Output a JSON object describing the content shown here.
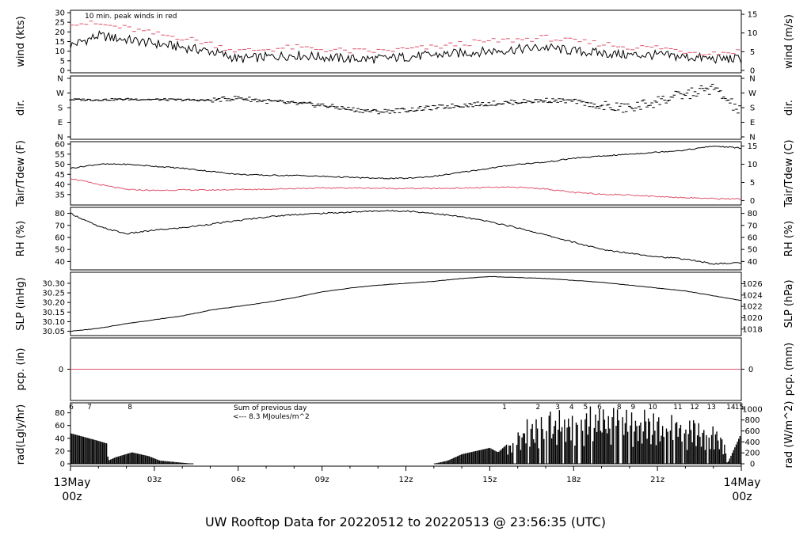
{
  "title": "UW Rooftop Data for 20220512  to  20220513 @ 23:56:35  (UTC)",
  "colors": {
    "title": "#2a8fd6",
    "peak": "#df536b",
    "rad_marks": "#b03fd0",
    "line": "#000000",
    "date": "#df536b"
  },
  "chart_data": [
    {
      "type": "line",
      "title": "",
      "note": "10 min. peak winds in red",
      "ylabel": "wind (kts)",
      "ylabel_right": "wind (m/s)",
      "yticks": [
        0,
        5,
        10,
        15,
        20,
        25,
        30
      ],
      "yticks_right": [
        0,
        5,
        10,
        15
      ],
      "ylim": [
        0,
        30
      ],
      "x": [
        0,
        1,
        2,
        3,
        4,
        5,
        6,
        7,
        8,
        9,
        10,
        11,
        12,
        13,
        14,
        15,
        16,
        17,
        18,
        19,
        20,
        21,
        22,
        23,
        24
      ],
      "series": [
        {
          "label": "wind",
          "values": [
            13,
            18,
            16,
            14,
            12,
            10,
            6,
            7,
            8,
            7,
            6,
            6,
            7,
            8,
            9,
            10,
            11,
            12,
            10,
            9,
            8,
            8,
            7,
            6,
            6
          ]
        },
        {
          "label": "peak",
          "values": [
            25,
            24,
            22,
            19,
            17,
            14,
            10,
            11,
            12,
            11,
            10,
            10,
            11,
            12,
            14,
            15,
            16,
            17,
            15,
            14,
            12,
            12,
            10,
            9,
            10
          ]
        }
      ]
    },
    {
      "type": "scatter",
      "ylabel": "dir.",
      "ylabel_right": "dir.",
      "ytick_labels": [
        "N",
        "E",
        "S",
        "W",
        "N"
      ],
      "x": [
        0,
        1,
        2,
        3,
        4,
        5,
        6,
        7,
        8,
        9,
        10,
        11,
        12,
        13,
        14,
        15,
        16,
        17,
        18,
        19,
        20,
        21,
        22,
        23,
        24
      ],
      "values_deg": [
        230,
        228,
        232,
        230,
        228,
        225,
        240,
        220,
        205,
        195,
        170,
        155,
        165,
        180,
        195,
        205,
        215,
        225,
        220,
        185,
        175,
        220,
        260,
        300,
        150
      ]
    },
    {
      "type": "line",
      "ylabel": "Tair/Tdew (F)",
      "ylabel_right": "Tair/Tdew (C)",
      "yticks": [
        35,
        40,
        45,
        50,
        55,
        60
      ],
      "yticks_right": [
        0,
        5,
        10,
        15
      ],
      "ylim": [
        31,
        60
      ],
      "x": [
        0,
        1,
        2,
        3,
        4,
        5,
        6,
        7,
        8,
        9,
        10,
        11,
        12,
        13,
        14,
        15,
        16,
        17,
        18,
        19,
        20,
        21,
        22,
        23,
        24
      ],
      "series": [
        {
          "label": "Tair",
          "values": [
            48,
            50,
            50,
            49,
            48,
            46.5,
            45,
            44.5,
            44.5,
            44,
            43.5,
            43,
            43,
            44,
            46,
            48,
            50,
            51,
            53,
            54,
            55,
            56,
            57,
            59,
            58
          ]
        },
        {
          "label": "Tdew",
          "values": [
            43,
            40,
            37.5,
            37,
            37.3,
            37.2,
            37.5,
            37.6,
            38,
            38.2,
            38.3,
            38.1,
            38,
            38,
            38.2,
            38.5,
            38.6,
            37.8,
            36,
            35.2,
            34.8,
            34,
            33.5,
            33,
            32.8
          ]
        }
      ]
    },
    {
      "type": "line",
      "ylabel": "RH (%)",
      "ylabel_right": "RH (%)",
      "yticks": [
        40,
        50,
        60,
        70,
        80
      ],
      "yticks_right": [
        40,
        50,
        60,
        70,
        80
      ],
      "ylim": [
        35,
        83
      ],
      "x": [
        0,
        1,
        2,
        3,
        4,
        5,
        6,
        7,
        8,
        9,
        10,
        11,
        12,
        13,
        14,
        15,
        16,
        17,
        18,
        19,
        20,
        21,
        22,
        23,
        24
      ],
      "series": [
        {
          "label": "RH",
          "values": [
            80,
            69,
            63,
            66,
            68,
            71,
            74,
            77,
            79,
            80,
            81,
            82,
            82,
            80,
            77,
            73,
            68,
            62,
            56,
            50,
            47,
            44,
            42,
            38,
            39
          ]
        }
      ]
    },
    {
      "type": "line",
      "ylabel": "SLP (inHg)",
      "ylabel_right": "SLP (hPa)",
      "yticks": [
        30.05,
        30.1,
        30.15,
        30.2,
        30.25,
        30.3
      ],
      "ytick_labels": [
        "30.05",
        "30.10",
        "30.15",
        "30.20",
        "30.25",
        "30.30"
      ],
      "yticks_right": [
        1018,
        1020,
        1022,
        1024,
        1026
      ],
      "ylim": [
        30.04,
        30.345
      ],
      "x": [
        0,
        1,
        2,
        3,
        4,
        5,
        6,
        7,
        8,
        9,
        10,
        11,
        12,
        13,
        14,
        15,
        16,
        17,
        18,
        19,
        20,
        21,
        22,
        23,
        24
      ],
      "series": [
        {
          "label": "SLP",
          "values": [
            30.05,
            30.065,
            30.09,
            30.11,
            30.13,
            30.16,
            30.18,
            30.2,
            30.225,
            30.255,
            30.275,
            30.29,
            30.3,
            30.31,
            30.325,
            30.335,
            30.33,
            30.325,
            30.315,
            30.305,
            30.29,
            30.275,
            30.26,
            30.235,
            30.21
          ]
        }
      ]
    },
    {
      "type": "line",
      "ylabel": "pcp. (in)",
      "ylabel_right": "pcp. (mm)",
      "yticks": [
        0
      ],
      "yticks_right": [
        0
      ],
      "x": [
        0,
        24
      ],
      "series": [
        {
          "label": "pcp",
          "values": [
            0,
            0
          ]
        }
      ]
    },
    {
      "type": "area",
      "ylabel": "rad(Lgly/hr)",
      "ylabel_right": "rad (W/m^2)",
      "yticks": [
        0,
        20,
        40,
        60,
        80
      ],
      "yticks_right": [
        0,
        200,
        400,
        600,
        800,
        1000
      ],
      "ylim": [
        0,
        92
      ],
      "annotation_sum": "Sum of previous day",
      "annotation_value": "<--- 8.3 MJoules/m^2",
      "hour_marks": [
        {
          "x": 0.0,
          "label": "6"
        },
        {
          "x": 0.65,
          "label": "7"
        },
        {
          "x": 2.1,
          "label": "8"
        },
        {
          "x": 15.5,
          "label": "1"
        },
        {
          "x": 16.7,
          "label": "2"
        },
        {
          "x": 17.4,
          "label": "3"
        },
        {
          "x": 17.9,
          "label": "4"
        },
        {
          "x": 18.4,
          "label": "5"
        },
        {
          "x": 18.9,
          "label": "6"
        },
        {
          "x": 19.6,
          "label": "8"
        },
        {
          "x": 20.1,
          "label": "9"
        },
        {
          "x": 20.8,
          "label": "10"
        },
        {
          "x": 21.7,
          "label": "11"
        },
        {
          "x": 22.3,
          "label": "12"
        },
        {
          "x": 22.9,
          "label": "13"
        },
        {
          "x": 23.6,
          "label": "14"
        },
        {
          "x": 23.9,
          "label": "15"
        }
      ],
      "x": [
        0,
        0.5,
        1.0,
        1.3,
        1.35,
        1.6,
        2.2,
        2.8,
        3.2,
        4.4,
        13.0,
        13.5,
        14.0,
        14.5,
        15.0,
        15.3,
        15.6,
        16.0,
        16.4,
        17.0,
        17.5,
        18.0,
        18.5,
        19.0,
        19.5,
        20.0,
        20.5,
        21.0,
        21.5,
        22.0,
        22.5,
        23.0,
        23.4,
        23.5,
        24.0
      ],
      "values": [
        48,
        42,
        36,
        32,
        5,
        10,
        18,
        12,
        5,
        0,
        0,
        5,
        15,
        20,
        25,
        18,
        30,
        50,
        65,
        72,
        75,
        74,
        78,
        82,
        80,
        76,
        72,
        70,
        66,
        62,
        60,
        55,
        30,
        0,
        48
      ]
    }
  ],
  "xaxis": {
    "hour_ticks": [
      "03z",
      "06z",
      "09z",
      "12z",
      "15z",
      "18z",
      "21z"
    ],
    "start_date": "13May",
    "start_time": "00z",
    "end_date": "14May",
    "end_time": "00z"
  }
}
